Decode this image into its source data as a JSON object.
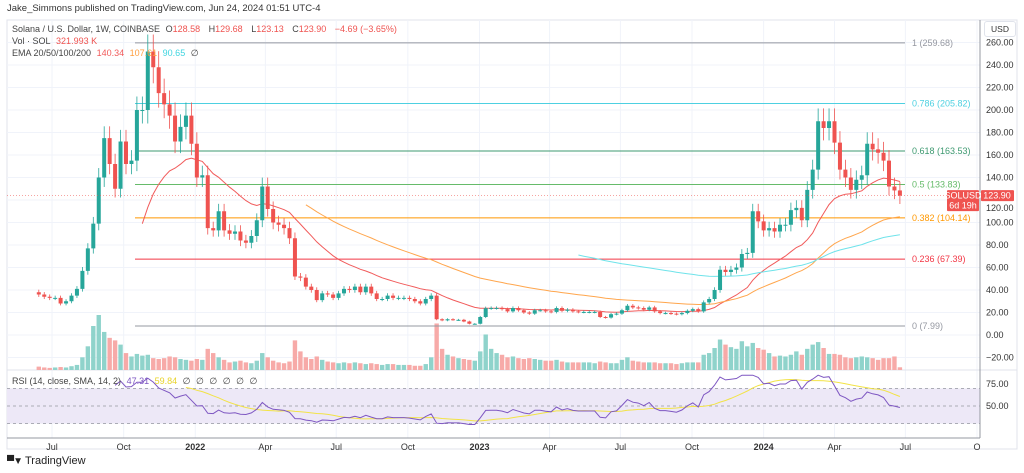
{
  "header": {
    "published": "Jake_Simmons published on TradingView.com, Jun 24, 2024 01:51 UTC-4"
  },
  "legend": {
    "symbol": "Solana / U.S. Dollar, 1W, COINBASE",
    "o_label": "O",
    "o": "128.58",
    "h_label": "H",
    "h": "129.68",
    "l_label": "L",
    "l": "123.13",
    "c_label": "C",
    "c": "123.90",
    "change": "−4.69 (−3.65%)",
    "vol_label": "Vol · SOL",
    "vol": "321.993 K",
    "ema_label": "EMA 20/50/100/200",
    "ema20": "140.34",
    "ema50": "107.61",
    "ema100": "90.65",
    "ema200": "∅"
  },
  "rsi_legend": {
    "label": "RSI (14, close, SMA, 14, 2)",
    "rsi": "47.31",
    "sma": "59.84",
    "empties": [
      "∅",
      "∅",
      "∅",
      "∅",
      "∅",
      "∅"
    ]
  },
  "price_tag": {
    "symbol": "SOLUSD",
    "price": "123.90",
    "countdown": "6d 19h"
  },
  "currency": "USD",
  "footer": {
    "brand": "TradingView"
  },
  "colors": {
    "up": "#26a69a",
    "down": "#ef5350",
    "vol_up": "#8fd3cb",
    "vol_down": "#f7aaa8",
    "ema20": "#f15b5b",
    "ema50": "#ffa64d",
    "ema100": "#6fe3ea",
    "rsi": "#7e57c2",
    "rsi_sma": "#f2e346",
    "rsi_band": "#ede8f7"
  },
  "chart_data": {
    "type": "candlestick",
    "interval": "1W",
    "start_week": "2021-06-14",
    "first_open": 38,
    "wick_ratio": 0.06,
    "closes": [
      36,
      34,
      33,
      33,
      28,
      30,
      35,
      41,
      57,
      77,
      99,
      140,
      175,
      152,
      130,
      172,
      152,
      155,
      200,
      200,
      252,
      238,
      215,
      205,
      195,
      172,
      185,
      195,
      170,
      140,
      142,
      95,
      93,
      110,
      93,
      90,
      92,
      84,
      82,
      88,
      102,
      132,
      112,
      100,
      98,
      95,
      86,
      52,
      51,
      43,
      40,
      31,
      37,
      36,
      33,
      37,
      41,
      40,
      43,
      38,
      43,
      37,
      32,
      32,
      35,
      33,
      33,
      33,
      32,
      30,
      28,
      32,
      35,
      14,
      13,
      14,
      13.5,
      13.5,
      12,
      10,
      10,
      16,
      23.8,
      24,
      24,
      23,
      21,
      24,
      22,
      20,
      19,
      22,
      22,
      21,
      20.5,
      24,
      21.5,
      22.5,
      21,
      20.5,
      20.5,
      20.5,
      20.5,
      16,
      15.5,
      18.5,
      19,
      22,
      26,
      24.5,
      24,
      22.5,
      24.5,
      21,
      19.5,
      19.5,
      19,
      18.5,
      19.5,
      21.5,
      23,
      21,
      29,
      32,
      40,
      58,
      56,
      58,
      60,
      72,
      73,
      110,
      101,
      93,
      95,
      92,
      98,
      98,
      111,
      113,
      102,
      129,
      147,
      190,
      184,
      190,
      171,
      147,
      140,
      129,
      138,
      142,
      170,
      165,
      162,
      155,
      132,
      128.5,
      123.9
    ],
    "volumes_k": [
      400,
      300,
      250,
      300,
      350,
      300,
      450,
      600,
      1500,
      2800,
      5200,
      6500,
      4500,
      3800,
      3500,
      3000,
      2000,
      1600,
      1900,
      1700,
      1800,
      1400,
      1300,
      1400,
      1600,
      1500,
      1300,
      1200,
      1100,
      1300,
      1200,
      2500,
      2000,
      1500,
      1200,
      900,
      1000,
      1100,
      900,
      800,
      1100,
      2000,
      1500,
      1100,
      900,
      800,
      1000,
      3500,
      2200,
      1500,
      1300,
      1600,
      1200,
      1000,
      900,
      800,
      900,
      800,
      900,
      800,
      700,
      800,
      700,
      600,
      700,
      700,
      600,
      600,
      600,
      500,
      500,
      700,
      1500,
      5500,
      2500,
      1800,
      1600,
      1400,
      1300,
      1200,
      1100,
      2200,
      4200,
      2500,
      2000,
      1800,
      1500,
      1600,
      1400,
      1300,
      1400,
      1300,
      1200,
      1100,
      1100,
      1200,
      1000,
      900,
      900,
      900,
      900,
      900,
      800,
      1000,
      900,
      800,
      800,
      1200,
      1500,
      1100,
      1000,
      900,
      900,
      900,
      800,
      800,
      800,
      700,
      800,
      900,
      900,
      900,
      1800,
      2000,
      2600,
      3600,
      3000,
      2700,
      2500,
      3400,
      2800,
      3200,
      2600,
      2400,
      2000,
      1600,
      1700,
      1600,
      1800,
      2200,
      1800,
      2500,
      3000,
      3300,
      2600,
      1900,
      1900,
      1800,
      1500,
      1400,
      1500,
      1600,
      1500,
      1400,
      1200,
      1400,
      1400,
      1600,
      322
    ],
    "ema_periods": [
      20,
      50,
      100
    ],
    "fib_levels": [
      {
        "label": "1 (259.68)",
        "price": 259.68,
        "color": "#9598a1"
      },
      {
        "label": "0.786 (205.82)",
        "price": 205.82,
        "color": "#4dd0e1"
      },
      {
        "label": "0.618 (163.53)",
        "price": 163.53,
        "color": "#3d9970"
      },
      {
        "label": "0.5 (133.83)",
        "price": 133.83,
        "color": "#66bb6a"
      },
      {
        "label": "0.382 (104.14)",
        "price": 104.14,
        "color": "#ff9800"
      },
      {
        "label": "0.236 (67.39)",
        "price": 67.39,
        "color": "#f23645"
      },
      {
        "label": "0 (7.99)",
        "price": 7.99,
        "color": "#9598a1"
      }
    ],
    "y_ticks": [
      "260.00",
      "240.00",
      "220.00",
      "200.00",
      "180.00",
      "160.00",
      "140.00",
      "120.00",
      "100.00",
      "80.00",
      "60.00",
      "40.00",
      "20.00",
      "0.00",
      "−20.00"
    ],
    "y_tick_values": [
      260,
      240,
      220,
      200,
      180,
      160,
      140,
      120,
      100,
      80,
      60,
      40,
      20,
      0,
      -20
    ],
    "rsi_ticks": [
      "75.00",
      "50.00"
    ],
    "rsi_tick_values": [
      75,
      50
    ],
    "x_ticks": [
      {
        "label": "Jul",
        "date": "2021-07-01"
      },
      {
        "label": "Oct",
        "date": "2021-10-01"
      },
      {
        "label": "2022",
        "date": "2022-01-01"
      },
      {
        "label": "Apr",
        "date": "2022-04-01"
      },
      {
        "label": "Jul",
        "date": "2022-07-01"
      },
      {
        "label": "Oct",
        "date": "2022-10-01"
      },
      {
        "label": "2023",
        "date": "2023-01-01"
      },
      {
        "label": "Apr",
        "date": "2023-04-01"
      },
      {
        "label": "Jul",
        "date": "2023-07-01"
      },
      {
        "label": "Oct",
        "date": "2023-10-01"
      },
      {
        "label": "2024",
        "date": "2024-01-01"
      },
      {
        "label": "Apr",
        "date": "2024-04-01"
      },
      {
        "label": "Jul",
        "date": "2024-07-01"
      },
      {
        "label": "O",
        "date": "2024-10-01"
      }
    ]
  }
}
